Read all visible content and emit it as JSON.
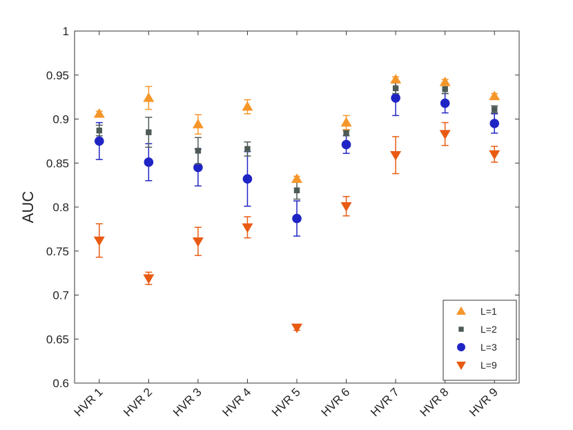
{
  "chart_data": {
    "type": "scatter",
    "title": "",
    "xlabel": "",
    "ylabel": "AUC",
    "ylim": [
      0.6,
      1.0
    ],
    "yticks": [
      0.6,
      0.65,
      0.7,
      0.75,
      0.8,
      0.85,
      0.9,
      0.95,
      1.0
    ],
    "ytick_labels": [
      "0.6",
      "0.65",
      "0.7",
      "0.75",
      "0.8",
      "0.85",
      "0.9",
      "0.95",
      "1"
    ],
    "categories": [
      "HVR 1",
      "HVR 2",
      "HVR 3",
      "HVR 4",
      "HVR 5",
      "HVR 6",
      "HVR 7",
      "HVR 8",
      "HVR 9"
    ],
    "grid": false,
    "legend_position": "bottom-right",
    "series": [
      {
        "name": "L=1",
        "marker": "triangle-up",
        "color": "#f5962a",
        "values": [
          0.906,
          0.924,
          0.894,
          0.914,
          0.832,
          0.896,
          0.945,
          0.942,
          0.926
        ],
        "errors": [
          0.003,
          0.013,
          0.011,
          0.008,
          0.003,
          0.008,
          0.003,
          0.003,
          0.003
        ]
      },
      {
        "name": "L=2",
        "marker": "square",
        "color": "#4d5a55",
        "values": [
          0.887,
          0.885,
          0.864,
          0.866,
          0.819,
          0.884,
          0.935,
          0.934,
          0.911
        ],
        "errors": [
          0.006,
          0.017,
          0.015,
          0.008,
          0.01,
          0.003,
          0.006,
          0.005,
          0.004
        ]
      },
      {
        "name": "L=3",
        "marker": "circle",
        "color": "#1f24c4",
        "values": [
          0.875,
          0.851,
          0.845,
          0.832,
          0.787,
          0.871,
          0.924,
          0.918,
          0.895
        ],
        "errors": [
          0.021,
          0.021,
          0.021,
          0.031,
          0.02,
          0.01,
          0.02,
          0.011,
          0.011
        ]
      },
      {
        "name": "L=9",
        "marker": "triangle-down",
        "color": "#e85a12",
        "values": [
          0.762,
          0.719,
          0.761,
          0.777,
          0.663,
          0.801,
          0.859,
          0.883,
          0.86
        ],
        "errors": [
          0.019,
          0.007,
          0.016,
          0.012,
          0.003,
          0.011,
          0.021,
          0.013,
          0.009
        ]
      }
    ]
  }
}
